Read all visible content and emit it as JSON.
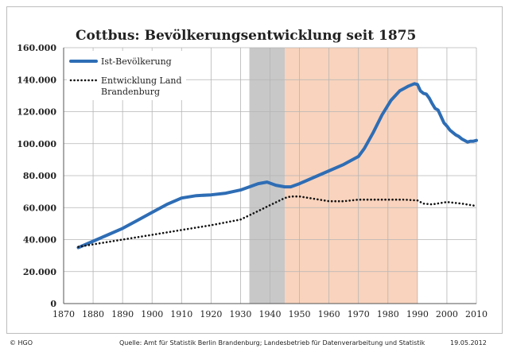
{
  "chart_data": {
    "type": "line",
    "title": "Cottbus: Bevölkerungsentwicklung seit 1875",
    "xlim": [
      1870,
      2010
    ],
    "ylim": [
      0,
      160000
    ],
    "x_ticks": [
      1870,
      1880,
      1890,
      1900,
      1910,
      1920,
      1930,
      1940,
      1950,
      1960,
      1970,
      1980,
      1990,
      2000,
      2010
    ],
    "x_tick_labels": [
      "1870",
      "1880",
      "1890",
      "1900",
      "1910",
      "1920",
      "1930",
      "1940",
      "1950",
      "1960",
      "1970",
      "1980",
      "1990",
      "2000",
      "2010"
    ],
    "y_ticks": [
      0,
      20000,
      40000,
      60000,
      80000,
      100000,
      120000,
      140000,
      160000
    ],
    "y_tick_labels": [
      "0",
      "20.000",
      "40.000",
      "60.000",
      "80.000",
      "100.000",
      "120.000",
      "140.000",
      "160.000"
    ],
    "grid": true,
    "legend_position": "top-left",
    "shaded_ranges": [
      {
        "from": 1933,
        "to": 1945,
        "color": "#c8c8c8"
      },
      {
        "from": 1945,
        "to": 1990,
        "color": "#f9d3bd"
      }
    ],
    "series": [
      {
        "name": "Ist-Bevölkerung",
        "style": "solid",
        "color": "#2e6db5",
        "x": [
          1875,
          1880,
          1885,
          1890,
          1895,
          1900,
          1905,
          1910,
          1915,
          1920,
          1925,
          1930,
          1933,
          1936,
          1939,
          1942,
          1945,
          1947,
          1950,
          1955,
          1960,
          1965,
          1970,
          1972,
          1975,
          1978,
          1981,
          1984,
          1987,
          1989,
          1990,
          1991,
          1992,
          1993,
          1994,
          1995,
          1996,
          1997,
          1998,
          1999,
          2000,
          2001,
          2002,
          2003,
          2004,
          2005,
          2006,
          2007,
          2008,
          2009,
          2010
        ],
        "y": [
          35000,
          39000,
          43000,
          47000,
          52000,
          57000,
          62000,
          66000,
          67500,
          68000,
          69000,
          71000,
          73000,
          75000,
          76000,
          74000,
          73000,
          73000,
          75000,
          79000,
          83000,
          87000,
          92000,
          97000,
          107000,
          118000,
          127000,
          133000,
          136000,
          137500,
          137000,
          133000,
          131500,
          131000,
          128500,
          125000,
          122000,
          121000,
          117000,
          113000,
          111000,
          108500,
          107000,
          105500,
          104500,
          103000,
          102000,
          101000,
          101500,
          101500,
          102000
        ]
      },
      {
        "name": "Entwicklung Land Brandenburg",
        "style": "dotted",
        "color": "#111111",
        "x": [
          1875,
          1880,
          1890,
          1900,
          1910,
          1920,
          1930,
          1935,
          1940,
          1945,
          1947,
          1950,
          1955,
          1960,
          1965,
          1970,
          1975,
          1980,
          1985,
          1990,
          1992,
          1995,
          2000,
          2005,
          2010
        ],
        "y": [
          35500,
          37000,
          40000,
          43000,
          46000,
          49000,
          52500,
          57000,
          61500,
          66000,
          67000,
          67000,
          65500,
          64000,
          64000,
          65000,
          65000,
          65000,
          65000,
          64500,
          62500,
          62000,
          63500,
          62500,
          61000
        ]
      }
    ]
  },
  "footer": {
    "copyright": "© HGO",
    "source": "Quelle: Amt für Statistik Berlin Brandenburg; Landesbetrieb für Datenverarbeitung und Statistik",
    "date": "19.05.2012"
  }
}
